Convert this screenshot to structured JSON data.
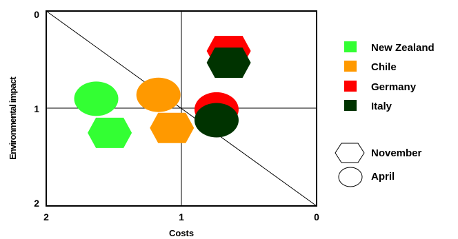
{
  "chart_data": {
    "type": "scatter",
    "title": "",
    "xlabel": "Costs",
    "ylabel": "Environmental impact",
    "xlim": [
      2,
      0
    ],
    "ylim": [
      0,
      2
    ],
    "x_reversed": true,
    "y_reversed": true,
    "x_ticks": [
      "2",
      "1",
      "0"
    ],
    "y_ticks": [
      "0",
      "1",
      "2"
    ],
    "reference_lines": [
      "x = 1",
      "y = 1",
      "diagonal from (2, 0) to (0, 2)"
    ],
    "series": [
      {
        "name": "New Zealand",
        "color": "#33ff33",
        "points": [
          {
            "month": "April",
            "x": 1.63,
            "y": 0.9
          },
          {
            "month": "November",
            "x": 1.53,
            "y": 1.25
          }
        ]
      },
      {
        "name": "Chile",
        "color": "#ff9900",
        "points": [
          {
            "month": "April",
            "x": 1.17,
            "y": 0.86
          },
          {
            "month": "November",
            "x": 1.07,
            "y": 1.2
          }
        ]
      },
      {
        "name": "Germany",
        "color": "#ff0000",
        "points": [
          {
            "month": "April",
            "x": 0.74,
            "y": 1.01
          },
          {
            "month": "November",
            "x": 0.65,
            "y": 0.41
          }
        ]
      },
      {
        "name": "Italy",
        "color": "#003300",
        "points": [
          {
            "month": "April",
            "x": 0.74,
            "y": 1.12
          },
          {
            "month": "November",
            "x": 0.65,
            "y": 0.53
          }
        ]
      }
    ],
    "shape_legend": [
      {
        "label": "November",
        "shape": "hexagon"
      },
      {
        "label": "April",
        "shape": "circle"
      }
    ],
    "legend_position": "right"
  }
}
